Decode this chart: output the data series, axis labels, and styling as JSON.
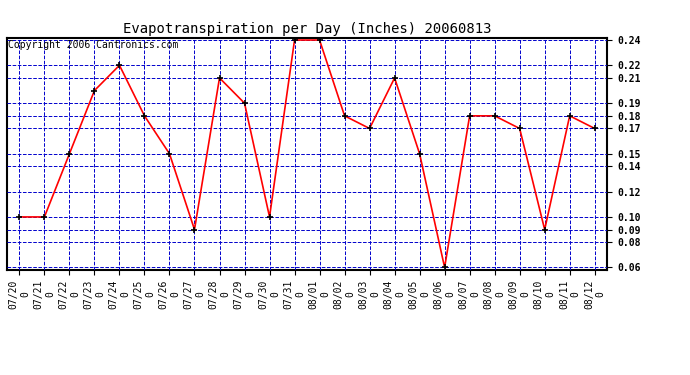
{
  "title": "Evapotranspiration per Day (Inches) 20060813",
  "copyright_text": "Copyright 2006 Cantronics.com",
  "x_labels": [
    "07/20\n0",
    "07/21\n0",
    "07/22\n0",
    "07/23\n0",
    "07/24\n0",
    "07/25\n0",
    "07/26\n0",
    "07/27\n0",
    "07/28\n0",
    "07/29\n0",
    "07/30\n0",
    "07/31\n0",
    "08/01\n0",
    "08/02\n0",
    "08/03\n0",
    "08/04\n0",
    "08/05\n0",
    "08/06\n0",
    "08/07\n0",
    "08/08\n0",
    "08/09\n0",
    "08/10\n0",
    "08/11\n0",
    "08/12\n0"
  ],
  "y_values": [
    0.1,
    0.1,
    0.15,
    0.2,
    0.22,
    0.18,
    0.15,
    0.09,
    0.21,
    0.19,
    0.1,
    0.24,
    0.24,
    0.18,
    0.17,
    0.21,
    0.15,
    0.06,
    0.18,
    0.18,
    0.17,
    0.09,
    0.18,
    0.17
  ],
  "line_color": "#ff0000",
  "marker_color": "#000000",
  "bg_color": "#ffffff",
  "plot_bg_color": "#ffffff",
  "grid_color": "#0000cc",
  "y_min": 0.06,
  "y_max": 0.24,
  "y_ticks": [
    0.06,
    0.08,
    0.09,
    0.1,
    0.12,
    0.14,
    0.15,
    0.17,
    0.18,
    0.19,
    0.21,
    0.22,
    0.24
  ],
  "title_fontsize": 10,
  "tick_fontsize": 7,
  "copyright_fontsize": 7
}
